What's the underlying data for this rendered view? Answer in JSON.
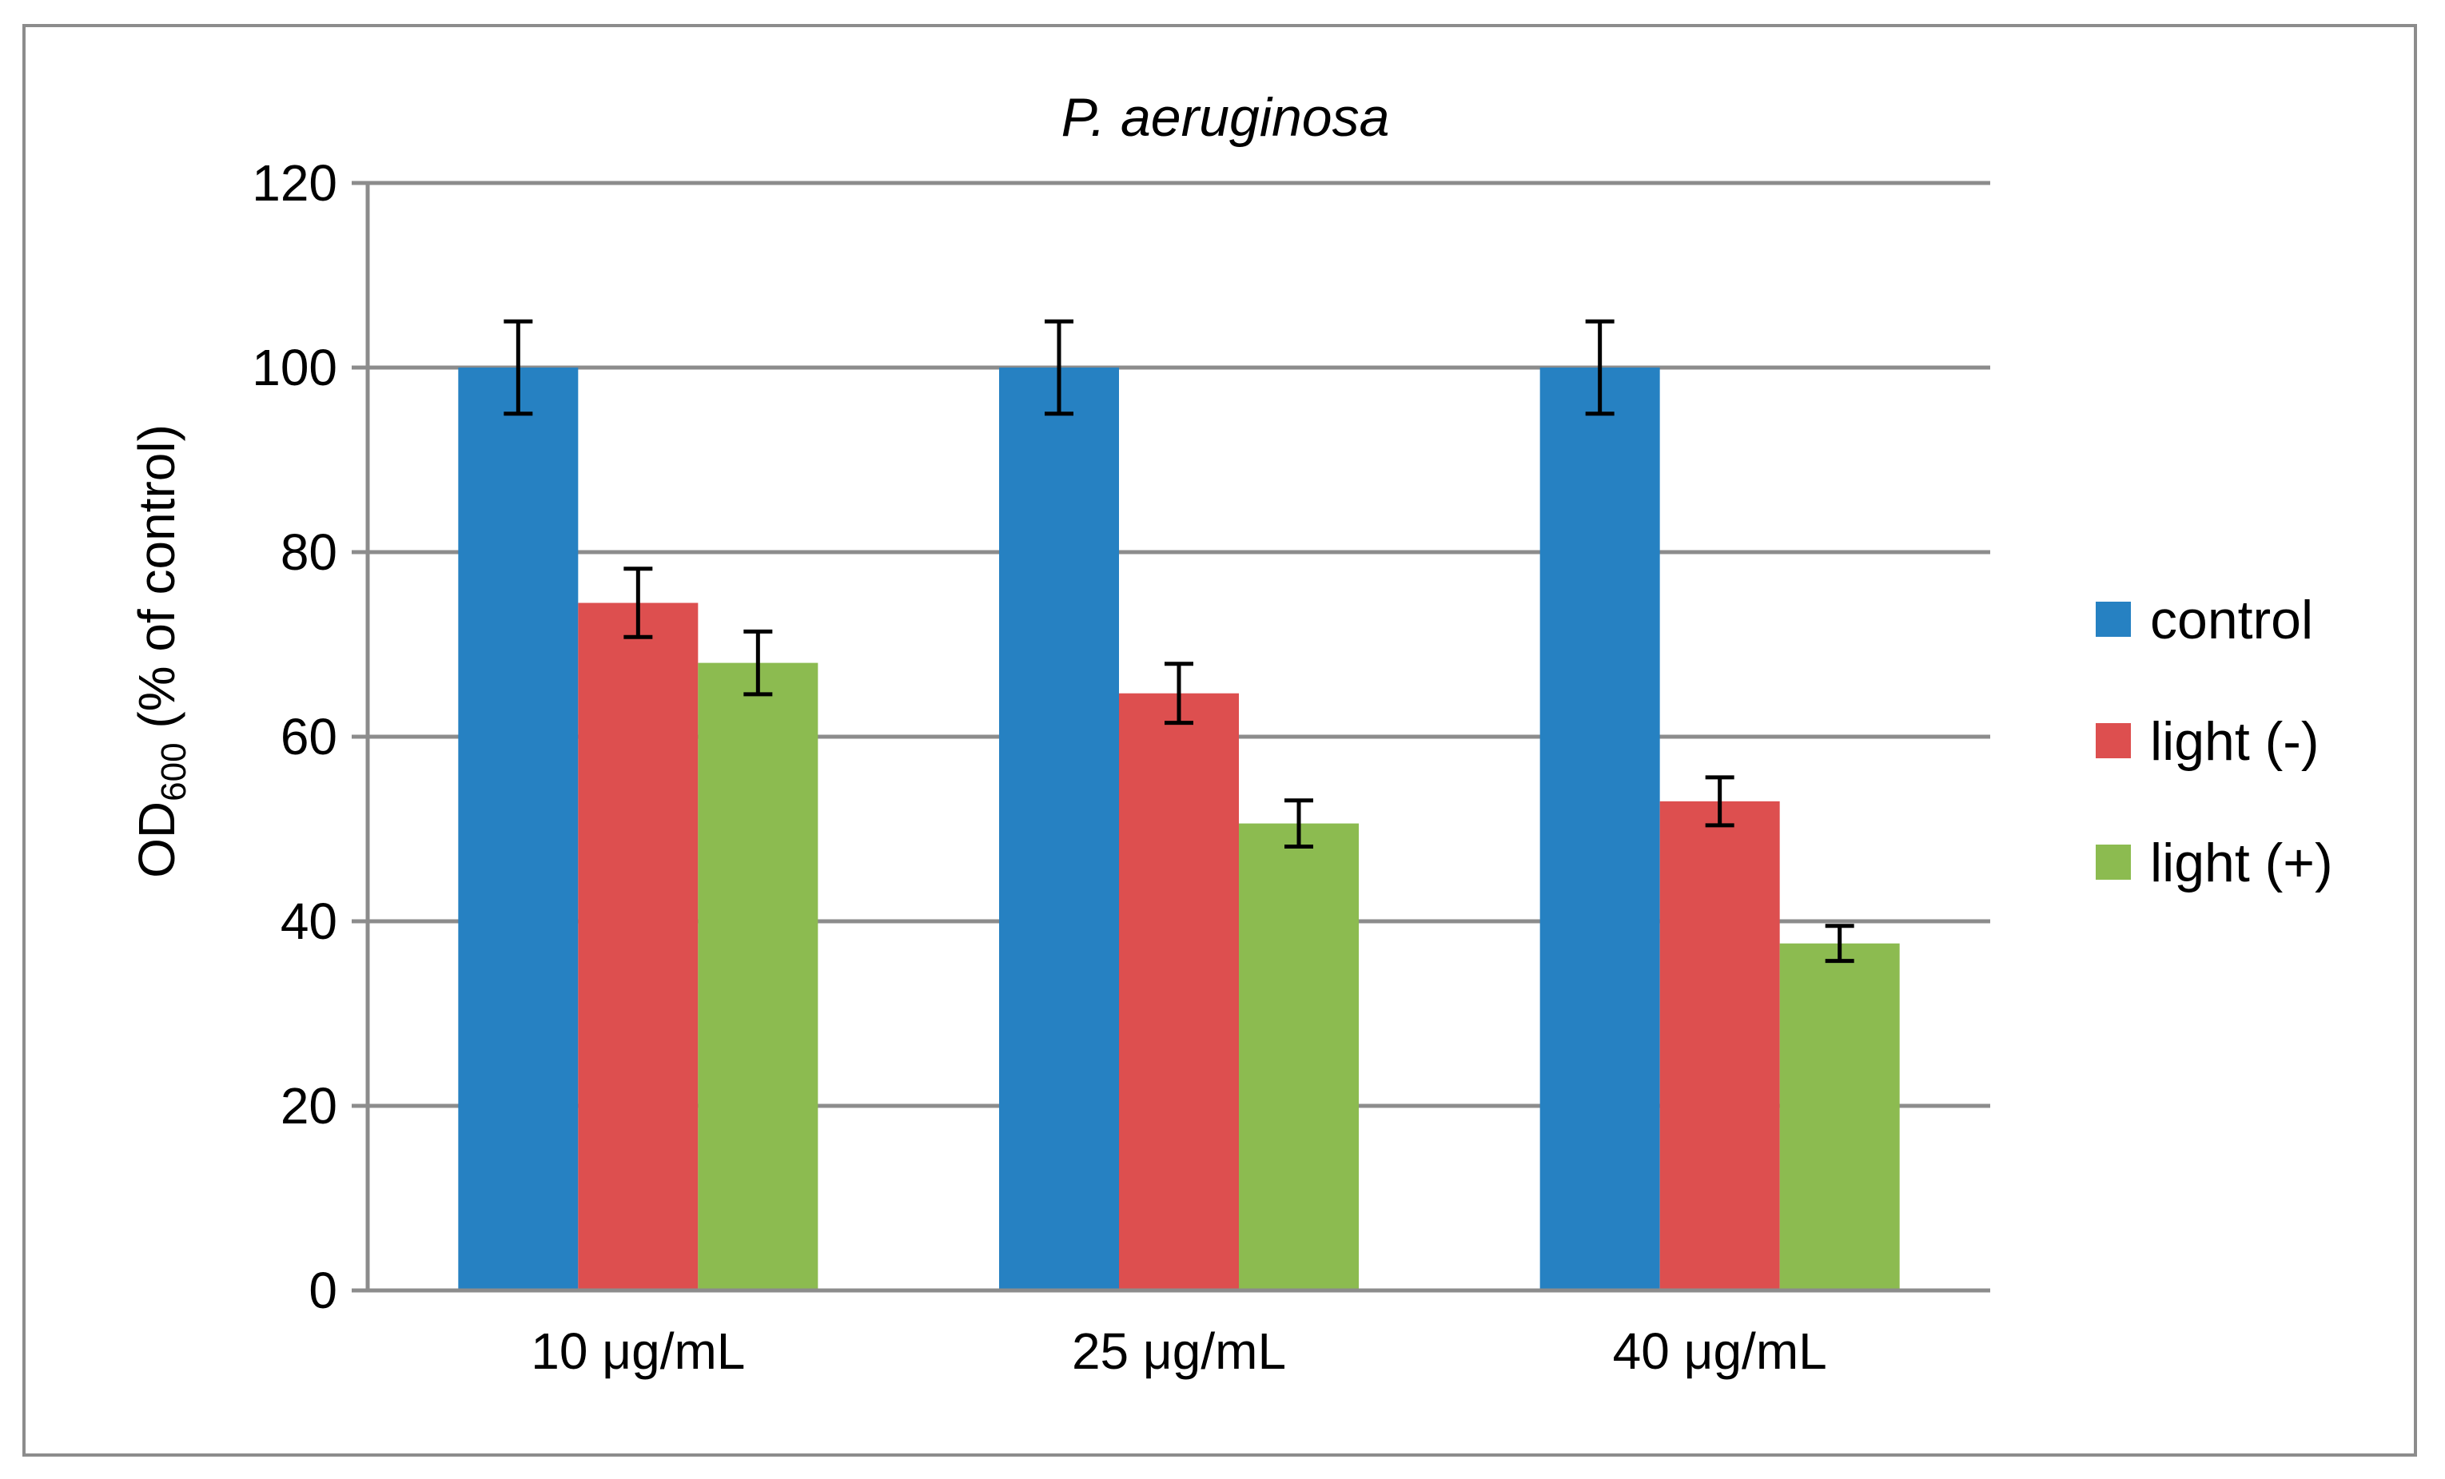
{
  "chart_data": {
    "type": "bar",
    "title": "P. aeruginosa",
    "ylabel": {
      "main": "OD",
      "subscript": "600",
      "suffix": " (% of control)"
    },
    "xlabel": "",
    "ylim": [
      0,
      120
    ],
    "yticks": [
      0,
      20,
      40,
      60,
      80,
      100,
      120
    ],
    "grid": true,
    "legend_position": "right",
    "categories": [
      "10 μg/mL",
      "25 μg/mL",
      "40 μg/mL"
    ],
    "series": [
      {
        "name": "control",
        "color": "#2681c2",
        "values": [
          100,
          100,
          100
        ],
        "errors": [
          5,
          5,
          5
        ]
      },
      {
        "name": "light (-)",
        "color": "#dd4f4f",
        "values": [
          74.5,
          64.7,
          53
        ],
        "errors": [
          3.7,
          3.2,
          2.6
        ]
      },
      {
        "name": "light (+)",
        "color": "#8cbb50",
        "values": [
          68,
          50.6,
          37.6
        ],
        "errors": [
          3.4,
          2.5,
          1.9
        ]
      }
    ]
  }
}
